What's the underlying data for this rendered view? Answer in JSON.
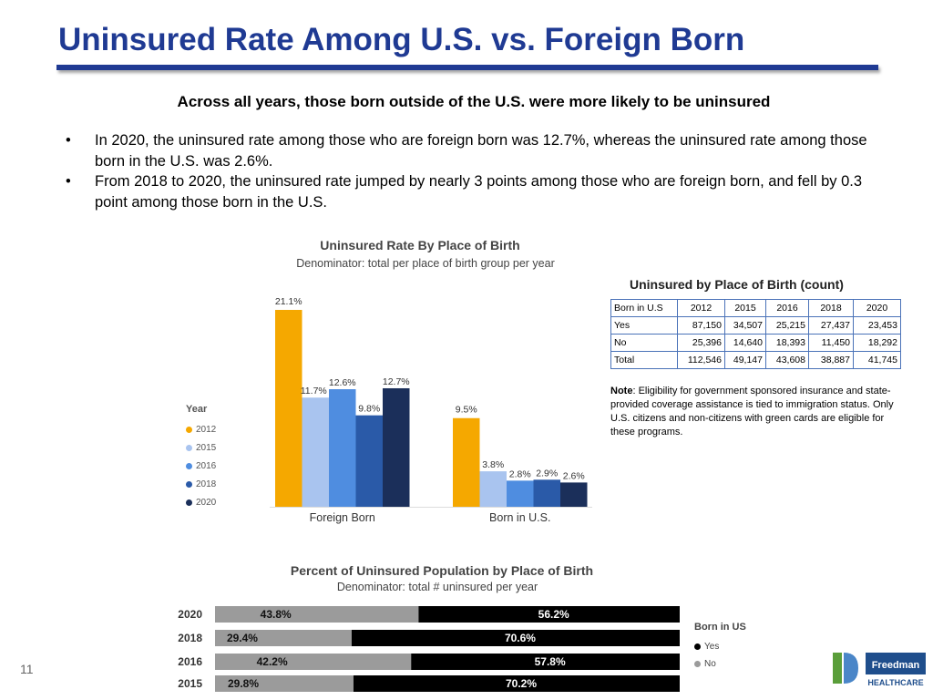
{
  "slide": {
    "title": "Uninsured Rate Among U.S. vs. Foreign Born",
    "headline": "Across all years, those born outside of the U.S. were more likely to be uninsured",
    "bullets": [
      "In 2020, the uninsured rate among those who are foreign born was 12.7%, whereas the uninsured rate among those born in the U.S. was 2.6%.",
      "From 2018 to 2020, the uninsured rate jumped by nearly 3 points among those who are foreign born, and fell by 0.3 point among those born in the U.S."
    ],
    "page_number": "11"
  },
  "chart_data": [
    {
      "type": "bar",
      "title": "Uninsured Rate By Place of Birth",
      "subtitle": "Denominator: total per place of birth group per year",
      "categories": [
        "Foreign Born",
        "Born in U.S."
      ],
      "legend_title": "Year",
      "legend_position": "left",
      "series": [
        {
          "name": "2012",
          "color": "#f5a800",
          "values": [
            21.1,
            9.5
          ],
          "labels": [
            "21.1%",
            "9.5%"
          ]
        },
        {
          "name": "2015",
          "color": "#a9c4ef",
          "values": [
            11.7,
            3.8
          ],
          "labels": [
            "11.7%",
            "3.8%"
          ]
        },
        {
          "name": "2016",
          "color": "#4f8de0",
          "values": [
            12.6,
            2.8
          ],
          "labels": [
            "12.6%",
            "2.8%"
          ]
        },
        {
          "name": "2018",
          "color": "#2a5aa8",
          "values": [
            9.8,
            2.9
          ],
          "labels": [
            "9.8%",
            "2.9%"
          ]
        },
        {
          "name": "2020",
          "color": "#1b2f5a",
          "values": [
            12.7,
            2.6
          ],
          "labels": [
            "12.7%",
            "2.6%"
          ]
        }
      ],
      "ylim": [
        0,
        22
      ],
      "grid": false
    },
    {
      "type": "table",
      "title": "Uninsured by Place of Birth (count)",
      "columns": [
        "Born in U.S",
        "2012",
        "2015",
        "2016",
        "2018",
        "2020"
      ],
      "rows": [
        [
          "Yes",
          "87,150",
          "34,507",
          "25,215",
          "27,437",
          "23,453"
        ],
        [
          "No",
          "25,396",
          "14,640",
          "18,393",
          "11,450",
          "18,292"
        ],
        [
          "Total",
          "112,546",
          "49,147",
          "43,608",
          "38,887",
          "41,745"
        ]
      ]
    },
    {
      "type": "bar",
      "orientation": "horizontal-stacked",
      "title": "Percent of Uninsured Population by Place of Birth",
      "subtitle": "Denominator: total # uninsured per year",
      "categories": [
        "2020",
        "2018",
        "2016",
        "2015"
      ],
      "legend_title": "Born in US",
      "legend_position": "right",
      "series": [
        {
          "name": "No",
          "color": "#9b9b9b",
          "values": [
            43.8,
            29.4,
            42.2,
            29.8
          ],
          "labels": [
            "43.8%",
            "29.4%",
            "42.2%",
            "29.8%"
          ]
        },
        {
          "name": "Yes",
          "color": "#000000",
          "values": [
            56.2,
            70.6,
            57.8,
            70.2
          ],
          "labels": [
            "56.2%",
            "70.6%",
            "57.8%",
            "70.2%"
          ]
        }
      ],
      "xlim": [
        0,
        100
      ]
    }
  ],
  "note": {
    "label": "Note",
    "text": ": Eligibility for government sponsored insurance and state-provided coverage assistance is tied to immigration status. Only U.S. citizens and non-citizens with green cards are eligible for these programs."
  },
  "logo": {
    "name": "Freedman",
    "tagline": "HEALTHCARE",
    "accent": "#1f4e8c",
    "mark_color": "#5a9e3a"
  }
}
